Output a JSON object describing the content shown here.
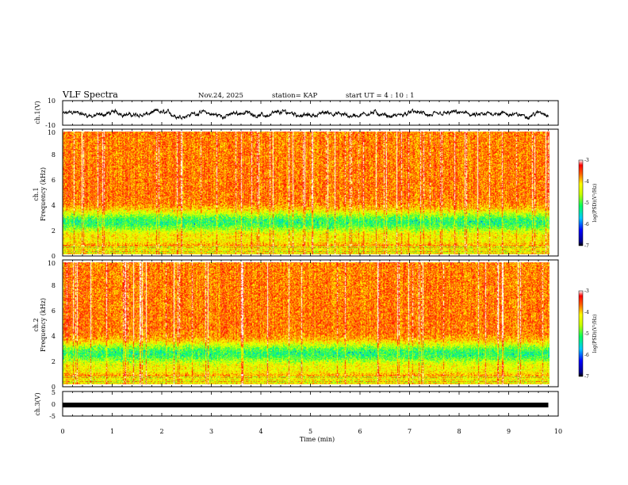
{
  "header": {
    "title": "VLF Spectra",
    "date": "Nov.24, 2025",
    "station": "station= KAP",
    "start": "start  UT =   4 : 10 : 1"
  },
  "chart_data": [
    {
      "type": "line",
      "name": "ch1-waveform",
      "title": "",
      "ylabel": "ch.1(V)",
      "ylim": [
        -10,
        10
      ],
      "yticks": [
        "10",
        "-10"
      ],
      "xlim": [
        0,
        10
      ],
      "trace": {
        "mean": -1.0,
        "amplitude": 4.0,
        "x_end": 9.8,
        "samples": 1600
      }
    },
    {
      "type": "heatmap",
      "name": "ch1-spectrogram",
      "ylabel_top": "ch.1",
      "ylabel": "Frequency (kHz)",
      "ylim": [
        0,
        10
      ],
      "yticks": [
        "0",
        "2",
        "4",
        "6",
        "8",
        "10"
      ],
      "xlim": [
        0,
        9.8
      ],
      "band_center_khz": 2.6,
      "colorbar": {
        "label": "log(PSD)(V²/Hz)",
        "min": -7,
        "max": -3,
        "ticks": [
          "-3",
          "-4",
          "-5",
          "-6",
          "-7"
        ]
      }
    },
    {
      "type": "heatmap",
      "name": "ch2-spectrogram",
      "ylabel_top": "ch.2",
      "ylabel": "Frequency (kHz)",
      "ylim": [
        0,
        10
      ],
      "yticks": [
        "0",
        "2",
        "4",
        "6",
        "8",
        "10"
      ],
      "xlim": [
        0,
        9.8
      ],
      "band_center_khz": 2.5,
      "colorbar": {
        "label": "log(PSD)(V²/Hz)",
        "min": -7,
        "max": -3,
        "ticks": [
          "-3",
          "-4",
          "-5",
          "-6",
          "-7"
        ]
      }
    },
    {
      "type": "line",
      "name": "ch3-level",
      "ylabel": "ch.3(V)",
      "ylim": [
        -5,
        5
      ],
      "yticks": [
        "5",
        "0",
        "-5"
      ],
      "xlim": [
        0,
        10
      ],
      "value": -0.5,
      "x_end": 9.8
    }
  ],
  "xaxis": {
    "label": "Time (min)",
    "ticks": [
      "0",
      "1",
      "2",
      "3",
      "4",
      "5",
      "6",
      "7",
      "8",
      "9",
      "10"
    ],
    "xlim": [
      0,
      10
    ]
  }
}
